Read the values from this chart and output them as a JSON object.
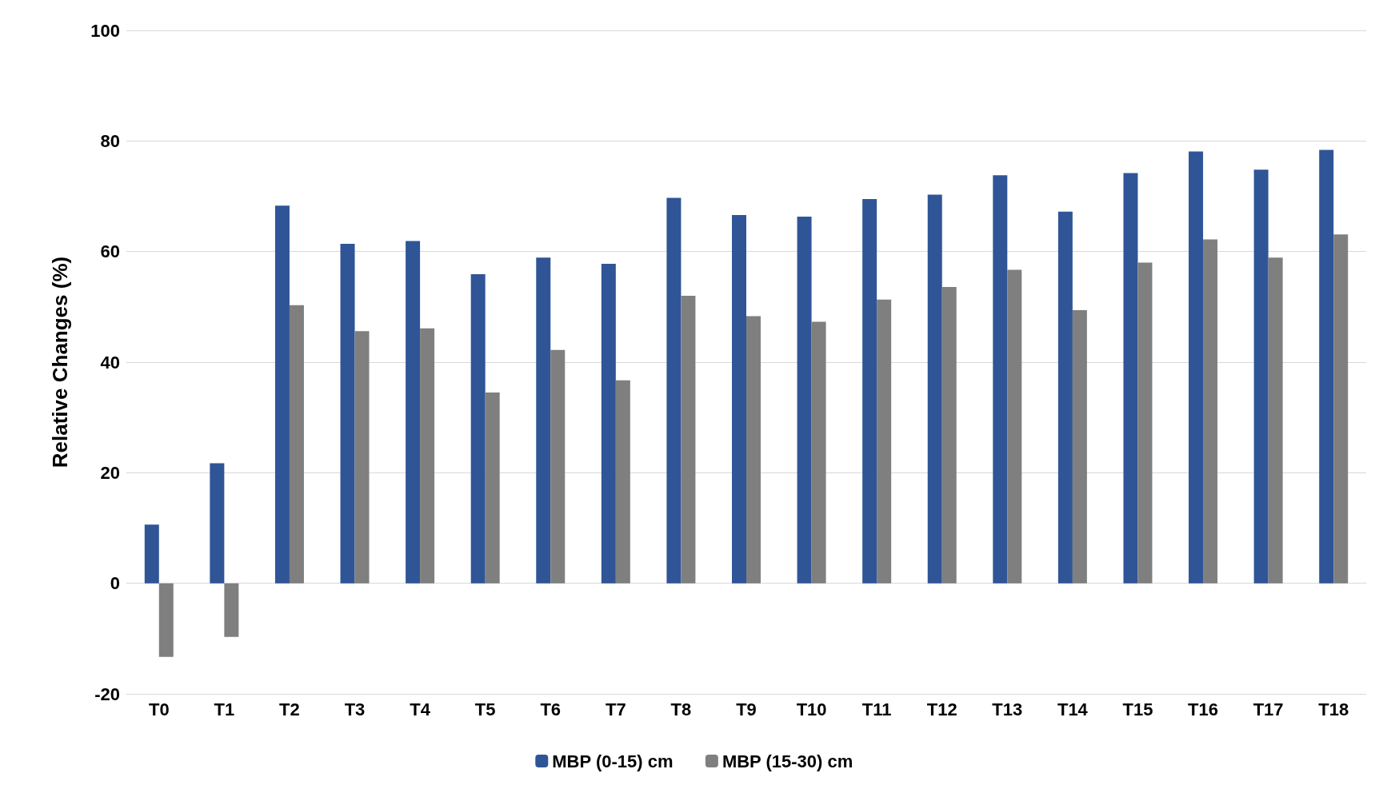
{
  "chart_data": {
    "type": "bar",
    "ylabel": "Relative Changes (%)",
    "categories": [
      "T0",
      "T1",
      "T2",
      "T3",
      "T4",
      "T5",
      "T6",
      "T7",
      "T8",
      "T9",
      "T10",
      "T11",
      "T12",
      "T13",
      "T14",
      "T15",
      "T16",
      "T17",
      "T18"
    ],
    "series": [
      {
        "name": "MBP (0-15) cm",
        "color": "#2f5597",
        "values": [
          10.6,
          21.7,
          68.3,
          61.4,
          61.9,
          55.9,
          58.9,
          57.8,
          69.7,
          66.6,
          66.3,
          69.5,
          70.3,
          73.8,
          67.2,
          74.2,
          78.1,
          74.8,
          78.4
        ]
      },
      {
        "name": "MBP (15-30) cm",
        "color": "#7f7f7f",
        "values": [
          -13.3,
          -9.7,
          50.3,
          45.6,
          46.1,
          34.5,
          42.2,
          36.7,
          52.0,
          48.3,
          47.3,
          51.3,
          53.6,
          56.7,
          49.4,
          58.0,
          62.2,
          58.9,
          63.1
        ]
      }
    ],
    "ylim": [
      -20,
      100
    ],
    "yticks": [
      -20,
      0,
      20,
      40,
      60,
      80,
      100
    ],
    "grid": "y",
    "legend": "bottom"
  }
}
